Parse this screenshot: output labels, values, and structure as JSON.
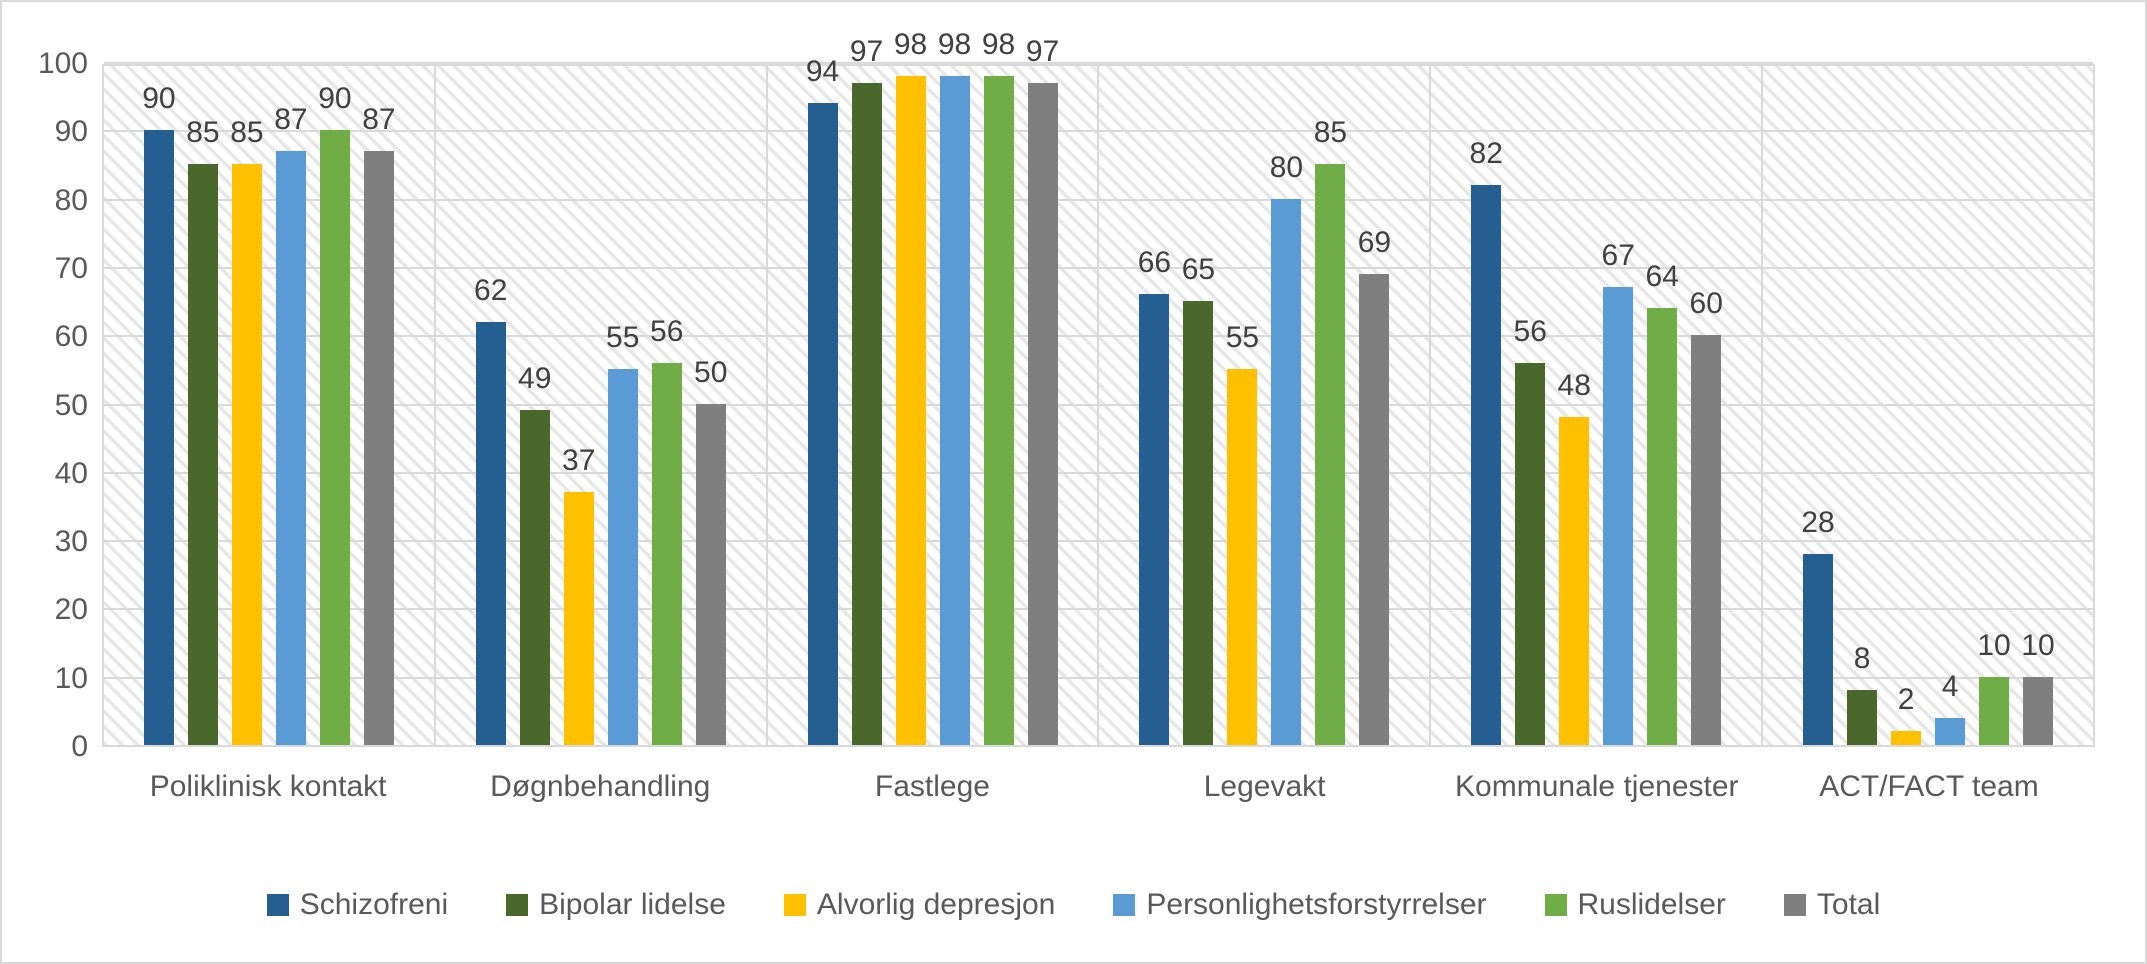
{
  "chart_data": {
    "type": "bar",
    "title": "",
    "xlabel": "",
    "ylabel": "",
    "categories": [
      "Poliklinisk kontakt",
      "Døgnbehandling",
      "Fastlege",
      "Legevakt",
      "Kommunale tjenester",
      "ACT/FACT team"
    ],
    "series": [
      {
        "name": "Schizofreni",
        "color": "#255E91",
        "values": [
          90,
          62,
          94,
          66,
          82,
          28
        ]
      },
      {
        "name": "Bipolar lidelse",
        "color": "#4A682C",
        "values": [
          85,
          49,
          97,
          65,
          56,
          8
        ]
      },
      {
        "name": "Alvorlig depresjon",
        "color": "#FFC000",
        "values": [
          85,
          37,
          98,
          55,
          48,
          2
        ]
      },
      {
        "name": "Personlighetsforstyrrelser",
        "color": "#5B9BD5",
        "values": [
          87,
          55,
          98,
          80,
          67,
          4
        ]
      },
      {
        "name": "Ruslidelser",
        "color": "#70AD47",
        "values": [
          90,
          56,
          98,
          85,
          64,
          10
        ]
      },
      {
        "name": "Total",
        "color": "#7F7F7F",
        "values": [
          87,
          50,
          97,
          69,
          60,
          10
        ]
      }
    ],
    "ylim": [
      0,
      100
    ],
    "yticks": [
      0,
      10,
      20,
      30,
      40,
      50,
      60,
      70,
      80,
      90,
      100
    ],
    "grid": true,
    "data_labels": true,
    "legend_position": "bottom",
    "colors": {
      "gridline": "#D9D9D9",
      "plot_hatch": "#E7E7E7",
      "axis_text": "#595959",
      "data_label_text": "#404040"
    }
  }
}
